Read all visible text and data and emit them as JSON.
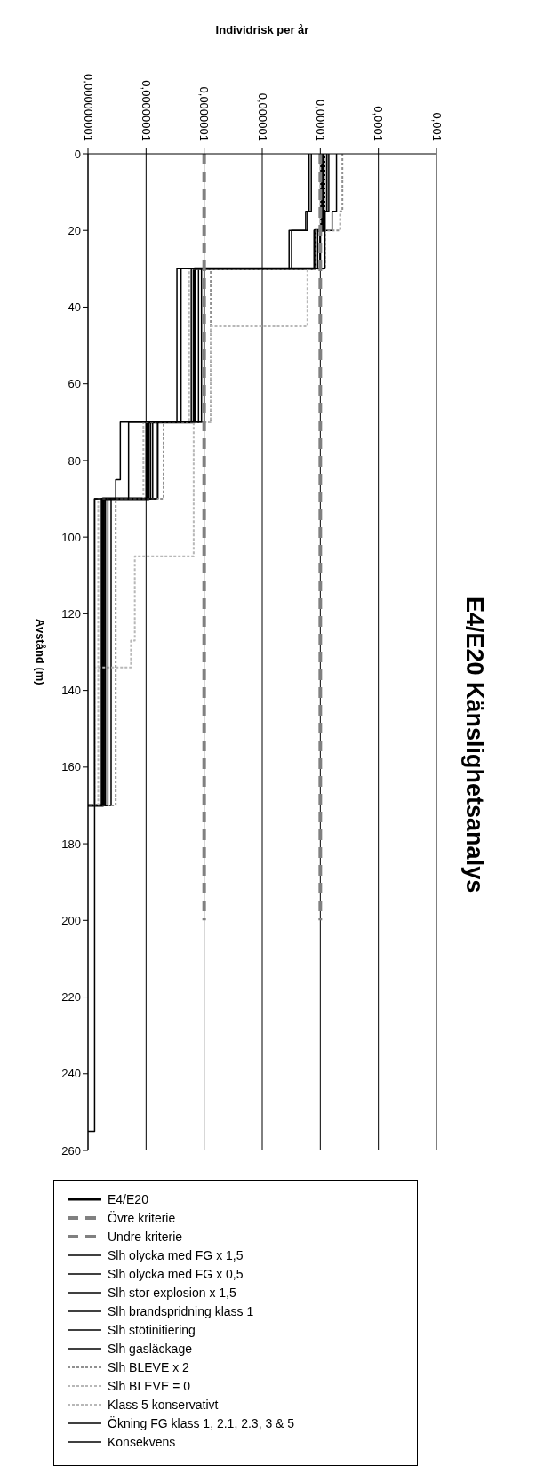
{
  "chart_data": {
    "type": "step",
    "orientation": "horizontal",
    "title": "E4/E20 Känslighetsanalys",
    "xlabel": "Individrisk per år",
    "ylabel": "Avstånd (m)",
    "xlim": [
      1e-09,
      0.001
    ],
    "xticks": [
      {
        "value": 1e-09,
        "label": "0,000000001"
      },
      {
        "value": 1e-08,
        "label": "0,00000001"
      },
      {
        "value": 1e-07,
        "label": "0,0000001"
      },
      {
        "value": 1e-06,
        "label": "0,000001"
      },
      {
        "value": 1e-05,
        "label": "0,00001"
      },
      {
        "value": 0.0001,
        "label": "0,0001"
      },
      {
        "value": 0.001,
        "label": "0,001"
      }
    ],
    "ylim": [
      260,
      0
    ],
    "yticks": [
      0,
      20,
      40,
      60,
      80,
      100,
      120,
      140,
      160,
      180,
      200,
      220,
      240,
      260
    ],
    "log": "x",
    "grid": "x",
    "legend": "bottom",
    "series": [
      {
        "name": "E4/E20",
        "color": "#000000",
        "x": [
          0,
          20,
          30,
          70,
          90,
          170
        ],
        "values": [
          1.1e-05,
          8e-06,
          6.8e-08,
          1.1e-08,
          1.8e-09,
          1e-09
        ]
      },
      {
        "name": "Övre kriterie",
        "type": "line",
        "line_style": "dashed",
        "color": "#808080",
        "x": [
          0,
          200
        ],
        "values": [
          1e-05,
          1e-05
        ]
      },
      {
        "name": "Undre kriterie",
        "type": "line",
        "line_style": "dashed",
        "color": "#808080",
        "x": [
          0,
          200
        ],
        "values": [
          1e-07,
          1e-07
        ]
      },
      {
        "name": "Slh olycka med FG x 1,5",
        "color": "#000000",
        "x": [
          0,
          15,
          20,
          30,
          70,
          90,
          170
        ],
        "values": [
          1.9e-05,
          1.6e-05,
          1e-05,
          1e-07,
          1.6e-08,
          2.5e-09,
          1e-09
        ]
      },
      {
        "name": "Slh olycka med FG x 0,5",
        "color": "#000000",
        "x": [
          0,
          15,
          20,
          30,
          70,
          90,
          170
        ],
        "values": [
          6.4e-06,
          5.6e-06,
          2.9e-06,
          3.4e-08,
          5e-09,
          1.3e-09,
          1e-09
        ]
      },
      {
        "name": "Slh stor explosion x 1,5",
        "color": "#000000",
        "x": [
          0,
          20,
          30,
          70,
          90,
          170
        ],
        "values": [
          1.2e-05,
          1e-05,
          7e-08,
          1.2e-08,
          1.9e-09,
          1e-09
        ]
      },
      {
        "name": "Slh brandspridning klass 1",
        "color": "#000000",
        "x": [
          0,
          15,
          20,
          30,
          70,
          90,
          170
        ],
        "values": [
          1.3e-05,
          1.1e-05,
          1e-05,
          8e-08,
          1.3e-08,
          2e-09,
          1e-09
        ]
      },
      {
        "name": "Slh stötinitiering",
        "color": "#000000",
        "x": [
          0,
          20,
          30,
          70,
          90,
          170
        ],
        "values": [
          1.05e-05,
          9e-06,
          6e-08,
          1e-08,
          1.7e-09,
          1e-09
        ]
      },
      {
        "name": "Slh gasläckage",
        "color": "#000000",
        "x": [
          0,
          20,
          30,
          70,
          90,
          170
        ],
        "values": [
          1.15e-05,
          1e-05,
          6.5e-08,
          1.05e-08,
          1.75e-09,
          1e-09
        ]
      },
      {
        "name": "Slh BLEVE x 2",
        "color": "#909090",
        "line_style": "dotted",
        "x": [
          0,
          15,
          20,
          30,
          70,
          90,
          170
        ],
        "values": [
          2.4e-05,
          2.2e-05,
          1.2e-05,
          1.3e-07,
          2e-08,
          3e-09,
          1e-09
        ]
      },
      {
        "name": "Slh BLEVE = 0",
        "color": "#b8b8b8",
        "line_style": "dotted",
        "x": [
          0,
          20,
          30,
          70,
          90,
          170
        ],
        "values": [
          1e-05,
          8.5e-06,
          5.5e-08,
          9e-09,
          1.5e-09,
          1e-09
        ]
      },
      {
        "name": "Klass 5 konservativt",
        "color": "#b8b8b8",
        "line_style": "dotted",
        "x": [
          0,
          30,
          45,
          70,
          105,
          127,
          134,
          170
        ],
        "values": [
          1.2e-05,
          6e-06,
          1.3e-07,
          6.6e-08,
          6.4e-09,
          5.5e-09,
          1.3e-09,
          1e-09
        ]
      },
      {
        "name": "Ökning FG klass 1, 2.1, 2.3, 3 & 5",
        "color": "#000000",
        "x": [
          0,
          15,
          30,
          70,
          90,
          170
        ],
        "values": [
          1.4e-05,
          1.2e-05,
          9e-08,
          1.5e-08,
          2.2e-09,
          1e-09
        ]
      },
      {
        "name": "Konsekvens",
        "color": "#000000",
        "x": [
          0,
          15,
          20,
          30,
          70,
          85,
          90,
          255
        ],
        "values": [
          7e-06,
          6e-06,
          3.2e-06,
          4e-08,
          3.6e-09,
          3e-09,
          1.3e-09,
          1e-09
        ]
      }
    ]
  }
}
